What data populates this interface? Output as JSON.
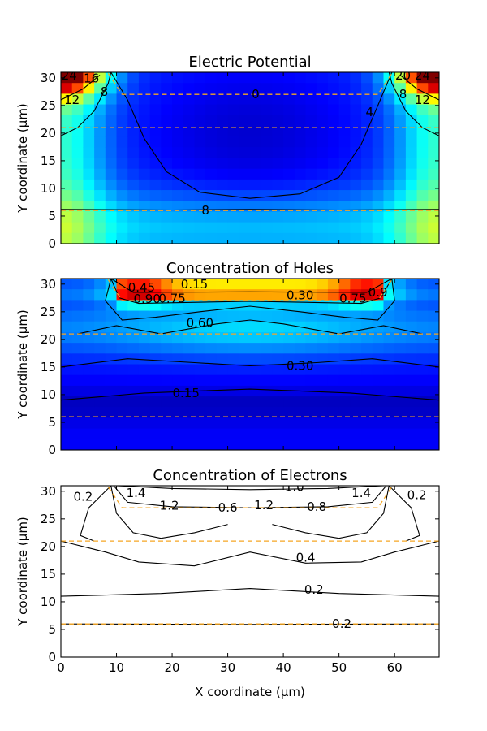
{
  "chart_data": [
    {
      "type": "heatmap",
      "title": "Electric Potential",
      "xlabel": "",
      "ylabel": "Y coordinate (µm)",
      "xlim": [
        0,
        68
      ],
      "ylim": [
        0,
        31
      ],
      "xticks": [
        0,
        10,
        20,
        30,
        40,
        50,
        60
      ],
      "yticks": [
        0,
        5,
        10,
        15,
        20,
        25,
        30
      ],
      "show_x_tick_labels": false,
      "colormap": "jet",
      "filled": true,
      "dashed_boundaries_y": [
        6,
        21,
        27
      ],
      "contour_labels": [
        {
          "text": "24",
          "x": 1.5,
          "y": 30.4
        },
        {
          "text": "16",
          "x": 5.5,
          "y": 29.9
        },
        {
          "text": "12",
          "x": 2.0,
          "y": 26.0
        },
        {
          "text": "8",
          "x": 7.8,
          "y": 27.5
        },
        {
          "text": "0",
          "x": 35.0,
          "y": 27.0
        },
        {
          "text": "4",
          "x": 55.5,
          "y": 23.8
        },
        {
          "text": "8",
          "x": 26.0,
          "y": 6.0
        },
        {
          "text": "20",
          "x": 61.5,
          "y": 30.4
        },
        {
          "text": "24",
          "x": 65.0,
          "y": 30.4
        },
        {
          "text": "8",
          "x": 61.5,
          "y": 27.0
        },
        {
          "text": "12",
          "x": 65.0,
          "y": 26.0
        }
      ]
    },
    {
      "type": "heatmap",
      "title": "Concentration of Holes",
      "xlabel": "",
      "ylabel": "Y coordinate (µm)",
      "xlim": [
        0,
        68
      ],
      "ylim": [
        0,
        31
      ],
      "xticks": [
        0,
        10,
        20,
        30,
        40,
        50,
        60
      ],
      "yticks": [
        0,
        5,
        10,
        15,
        20,
        25,
        30
      ],
      "show_x_tick_labels": false,
      "colormap": "jet",
      "filled": true,
      "dashed_boundaries_y": [
        6,
        21,
        27
      ],
      "contour_labels": [
        {
          "text": "0.45",
          "x": 14.5,
          "y": 29.4
        },
        {
          "text": "0.15",
          "x": 24.0,
          "y": 30.0
        },
        {
          "text": "0.90",
          "x": 15.5,
          "y": 27.3
        },
        {
          "text": "0.75",
          "x": 20.0,
          "y": 27.4
        },
        {
          "text": "0.30",
          "x": 43.0,
          "y": 28.0
        },
        {
          "text": "0.75",
          "x": 52.5,
          "y": 27.4
        },
        {
          "text": "0.9",
          "x": 57.0,
          "y": 28.5
        },
        {
          "text": "0.60",
          "x": 25.0,
          "y": 23.0
        },
        {
          "text": "0.30",
          "x": 43.0,
          "y": 15.2
        },
        {
          "text": "0.15",
          "x": 22.5,
          "y": 10.3
        }
      ]
    },
    {
      "type": "heatmap",
      "title": "Concentration of Electrons",
      "xlabel": "X coordinate (µm)",
      "ylabel": "Y coordinate (µm)",
      "xlim": [
        0,
        68
      ],
      "ylim": [
        0,
        31
      ],
      "xticks": [
        0,
        10,
        20,
        30,
        40,
        50,
        60
      ],
      "yticks": [
        0,
        5,
        10,
        15,
        20,
        25,
        30
      ],
      "show_x_tick_labels": true,
      "colormap": "none",
      "filled": false,
      "dashed_boundaries_y": [
        6,
        21,
        27
      ],
      "contour_labels": [
        {
          "text": "0.2",
          "x": 4.0,
          "y": 29.0
        },
        {
          "text": "1.4",
          "x": 13.5,
          "y": 29.7
        },
        {
          "text": "1.2",
          "x": 19.5,
          "y": 27.4
        },
        {
          "text": "1.0",
          "x": 42.0,
          "y": 30.8
        },
        {
          "text": "0.6",
          "x": 30.0,
          "y": 27.0
        },
        {
          "text": "1.2",
          "x": 36.5,
          "y": 27.5
        },
        {
          "text": "0.8",
          "x": 46.0,
          "y": 27.2
        },
        {
          "text": "1.4",
          "x": 54.0,
          "y": 29.7
        },
        {
          "text": "0.2",
          "x": 64.0,
          "y": 29.3
        },
        {
          "text": "0.4",
          "x": 44.0,
          "y": 18.0
        },
        {
          "text": "0.2",
          "x": 45.5,
          "y": 12.2
        },
        {
          "text": "0.2",
          "x": 50.5,
          "y": 6.0
        }
      ]
    }
  ]
}
